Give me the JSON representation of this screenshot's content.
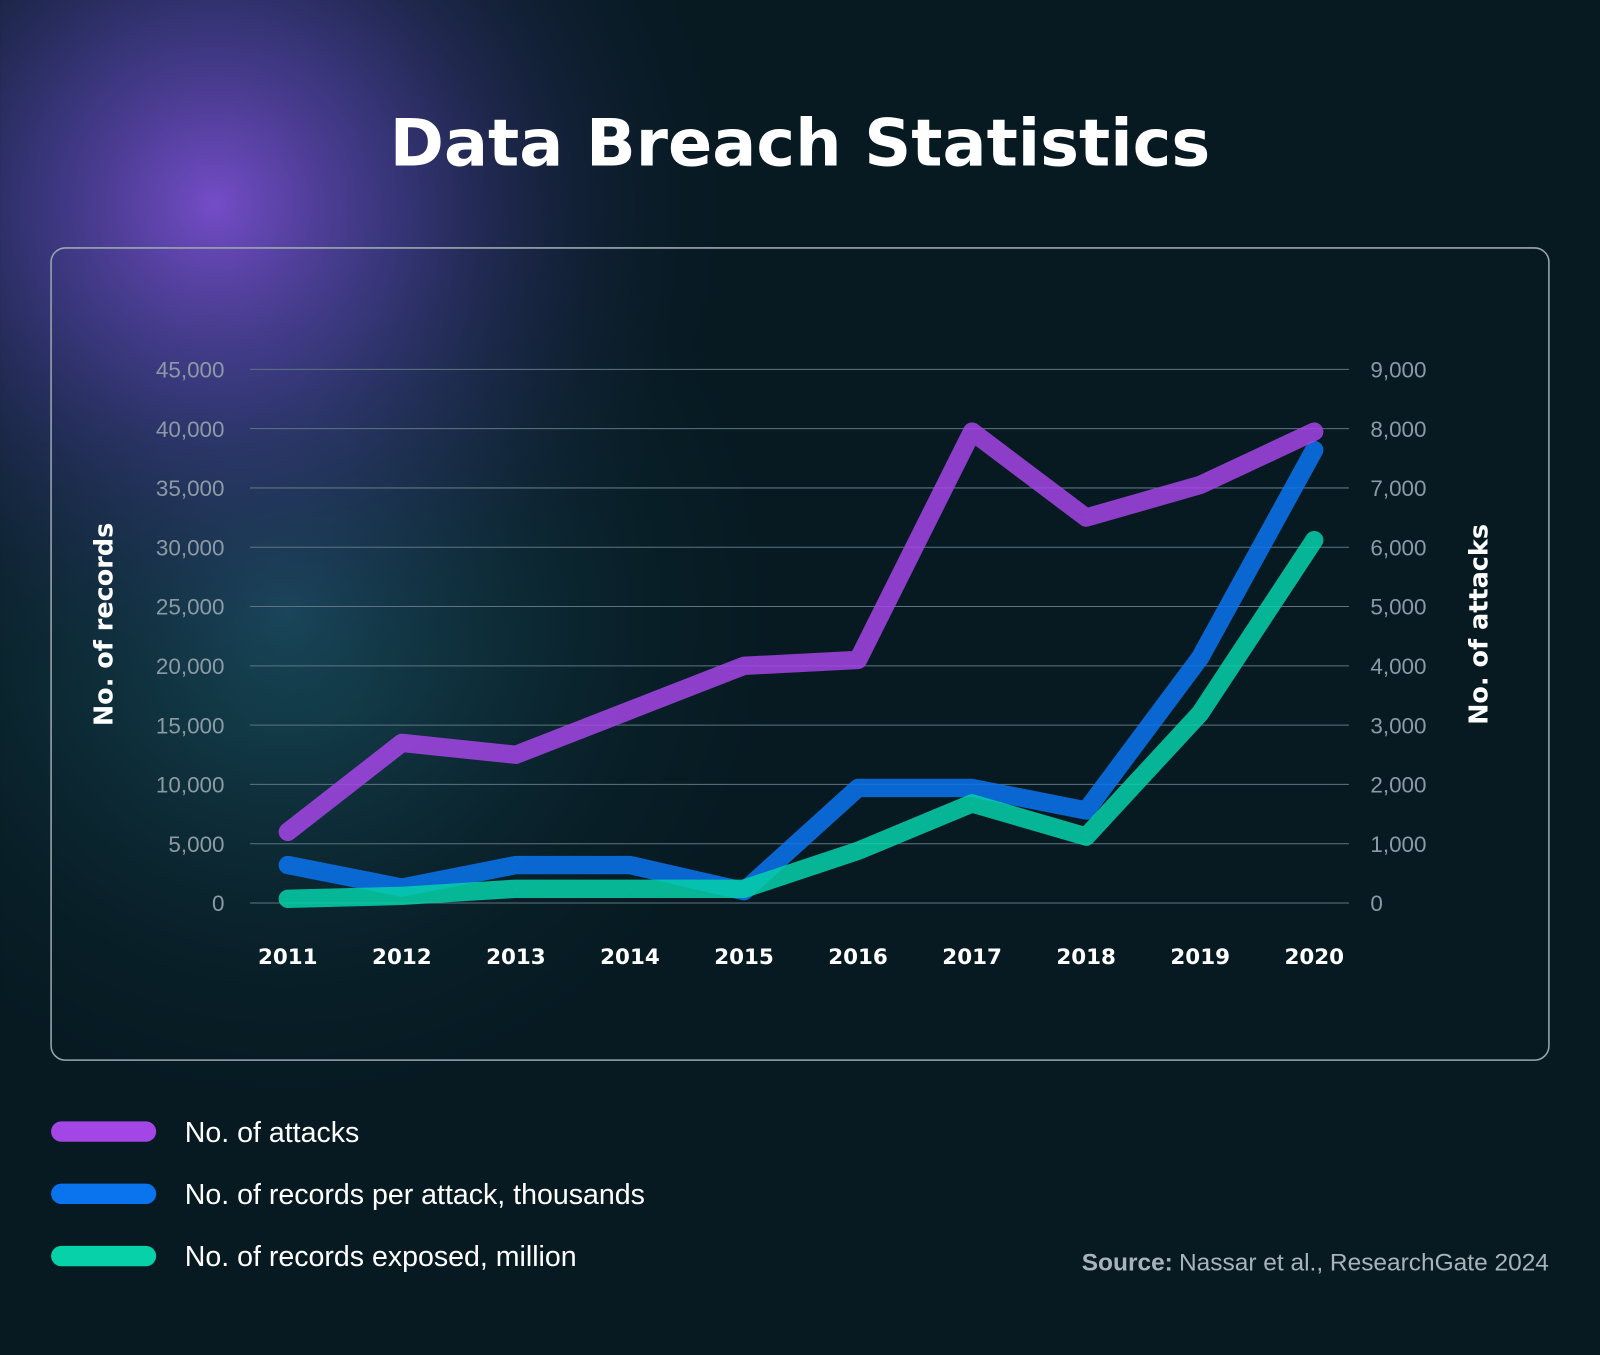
{
  "chart_data": {
    "type": "line",
    "title": "Data Breach Statistics",
    "x": [
      "2011",
      "2012",
      "2013",
      "2014",
      "2015",
      "2016",
      "2017",
      "2018",
      "2019",
      "2020"
    ],
    "ylabel_left": "No. of records",
    "ylabel_right": "No. of attacks",
    "ylim_left": [
      0,
      45000
    ],
    "ylim_right": [
      0,
      9000
    ],
    "yticks_left": [
      "0",
      "5,000",
      "10,000",
      "15,000",
      "20,000",
      "25,000",
      "30,000",
      "35,000",
      "40,000",
      "45,000"
    ],
    "yticks_right": [
      "0",
      "1,000",
      "2,000",
      "3,000",
      "4,000",
      "5,000",
      "6,000",
      "7,000",
      "8,000",
      "9,000"
    ],
    "grid": true,
    "legend_position": "bottom-left",
    "series": [
      {
        "name": "No. of attacks",
        "axis": "right",
        "color": "#a445e6",
        "values": [
          1200,
          2700,
          2500,
          3250,
          4000,
          4100,
          7950,
          6500,
          7050,
          7950
        ]
      },
      {
        "name": "No. of records per attack, thousands",
        "axis": "left",
        "color": "#0a74ee",
        "values": [
          3200,
          1300,
          3200,
          3200,
          1000,
          9700,
          9700,
          7800,
          20700,
          38200
        ]
      },
      {
        "name": "No. of records exposed, million",
        "axis": "left",
        "color": "#06d1a9",
        "values": [
          350,
          600,
          1200,
          1200,
          1200,
          4400,
          8400,
          5600,
          16000,
          30600
        ]
      }
    ],
    "source_label": "Source:",
    "source_text": "Nassar et al., ResearchGate 2024"
  }
}
